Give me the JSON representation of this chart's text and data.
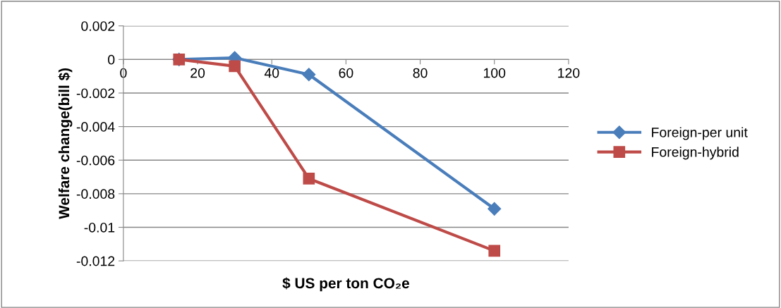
{
  "chart_data": {
    "type": "line",
    "xlabel": "$ US per ton CO₂e",
    "ylabel": "Welfare change(bill $)",
    "series": [
      {
        "name": "Foreign-per unit",
        "color": "#4a7ebb",
        "marker": "diamond",
        "x": [
          15,
          30,
          50,
          100
        ],
        "values": [
          0,
          0.0001,
          -0.0009,
          -0.0089
        ]
      },
      {
        "name": "Foreign-hybrid",
        "color": "#be4b48",
        "marker": "square",
        "x": [
          15,
          30,
          50,
          100
        ],
        "values": [
          0,
          -0.0004,
          -0.0071,
          -0.0114
        ]
      }
    ],
    "xlim": [
      0,
      120
    ],
    "xticks": [
      0,
      20,
      40,
      60,
      80,
      100,
      120
    ],
    "ylim": [
      -0.012,
      0.002
    ],
    "yticks": [
      -0.012,
      -0.01,
      -0.008,
      -0.006,
      -0.004,
      -0.002,
      0,
      0.002
    ],
    "grid": "y",
    "legend": "right",
    "line_style": "solid"
  }
}
